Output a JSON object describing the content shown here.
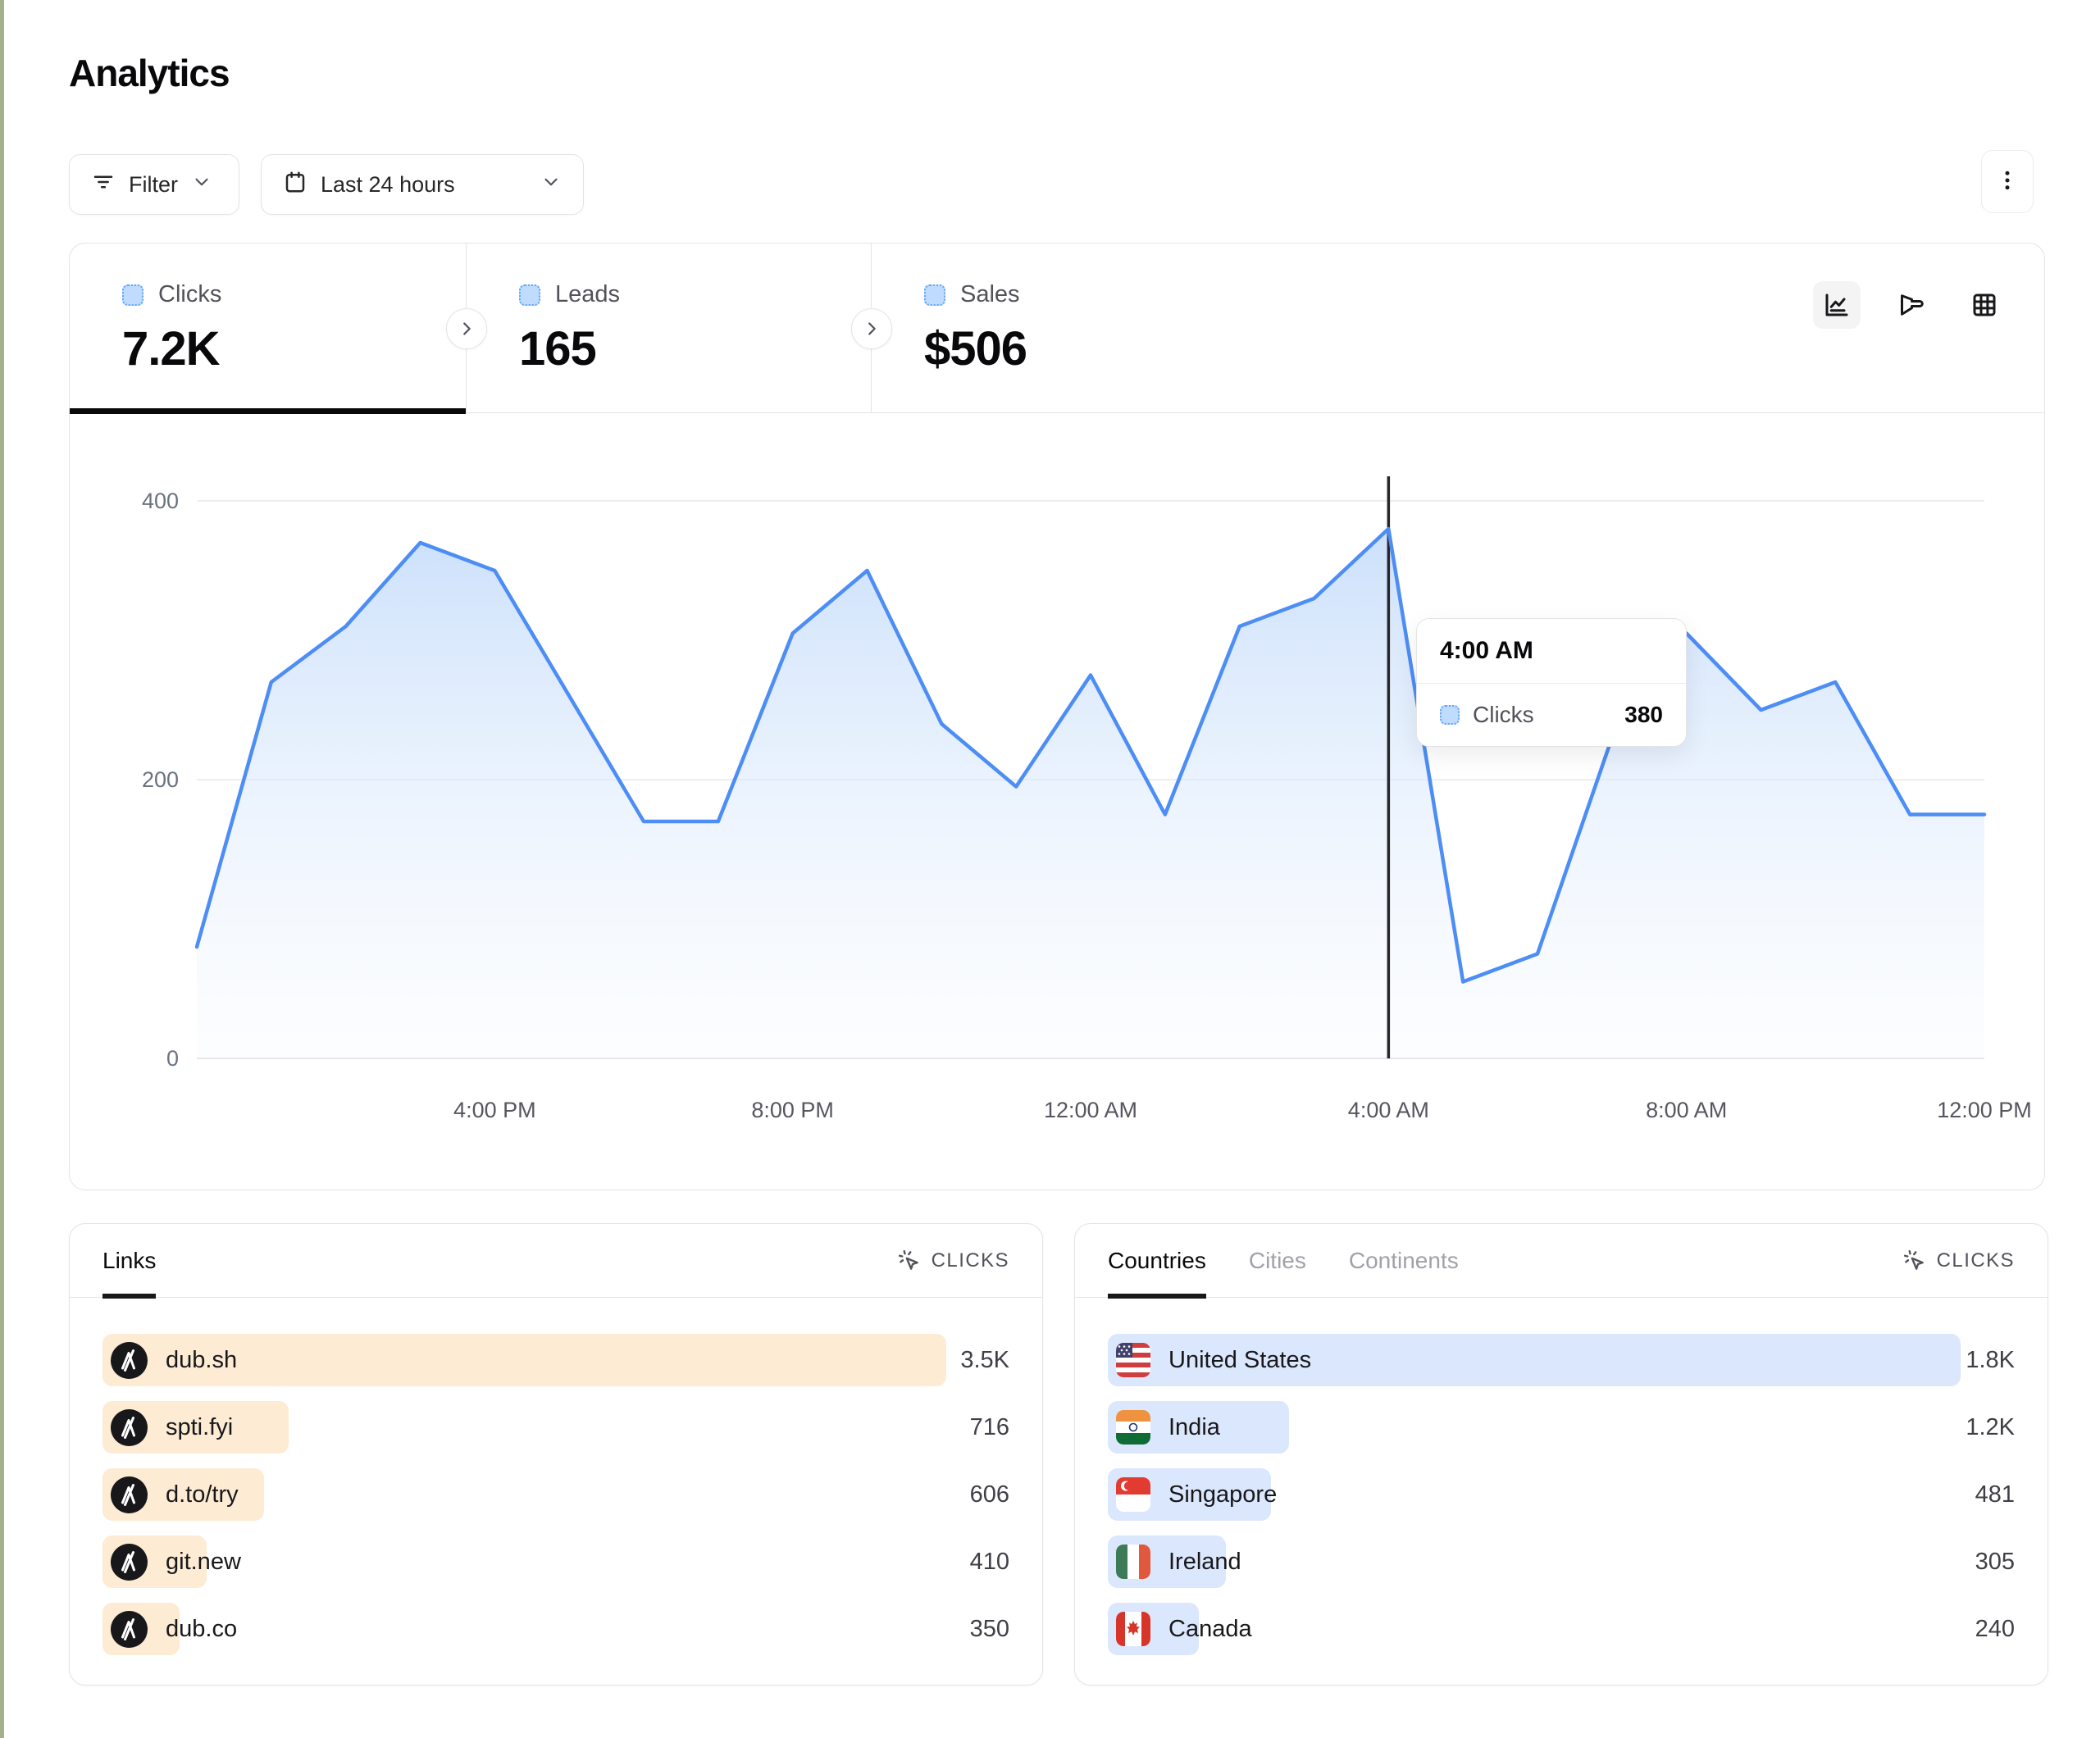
{
  "page": {
    "title": "Analytics"
  },
  "toolbar": {
    "filter_label": "Filter",
    "date_range_label": "Last 24 hours"
  },
  "stats": {
    "tabs": [
      {
        "label": "Clicks",
        "value": "7.2K",
        "active": true
      },
      {
        "label": "Leads",
        "value": "165",
        "active": false
      },
      {
        "label": "Sales",
        "value": "$506",
        "active": false
      }
    ],
    "view_icons": [
      "line-chart",
      "funnel-chart",
      "table-grid"
    ],
    "selected_view": "line-chart"
  },
  "chart_data": {
    "type": "area",
    "x": [
      "12:00 PM",
      "1:00 PM",
      "2:00 PM",
      "3:00 PM",
      "4:00 PM",
      "5:00 PM",
      "6:00 PM",
      "7:00 PM",
      "8:00 PM",
      "9:00 PM",
      "10:00 PM",
      "11:00 PM",
      "12:00 AM",
      "1:00 AM",
      "2:00 AM",
      "3:00 AM",
      "4:00 AM",
      "5:00 AM",
      "6:00 AM",
      "7:00 AM",
      "8:00 AM",
      "9:00 AM",
      "10:00 AM",
      "11:00 AM",
      "12:00 PM"
    ],
    "series": [
      {
        "name": "Clicks",
        "values": [
          80,
          270,
          310,
          370,
          350,
          260,
          170,
          170,
          305,
          350,
          240,
          195,
          275,
          175,
          310,
          330,
          380,
          55,
          75,
          230,
          305,
          250,
          270,
          175,
          175
        ]
      }
    ],
    "x_tick_indices": [
      4,
      8,
      12,
      16,
      20,
      24
    ],
    "x_tick_labels": [
      "4:00 PM",
      "8:00 PM",
      "12:00 AM",
      "4:00 AM",
      "8:00 AM",
      "12:00 PM"
    ],
    "y_ticks": [
      0,
      200,
      400
    ],
    "ylim": [
      0,
      400
    ],
    "grid": "horizontal",
    "legend_position": "none",
    "crosshair_index": 16
  },
  "tooltip": {
    "title": "4:00 AM",
    "rows": [
      {
        "label": "Clicks",
        "value": "380"
      }
    ]
  },
  "links_panel": {
    "tabs": [
      {
        "label": "Links",
        "active": true
      }
    ],
    "metric_label": "CLICKS",
    "rows": [
      {
        "label": "dub.sh",
        "value": "3.5K",
        "bar_pct": 93
      },
      {
        "label": "spti.fyi",
        "value": "716",
        "bar_pct": 20.5
      },
      {
        "label": "d.to/try",
        "value": "606",
        "bar_pct": 17.8
      },
      {
        "label": "git.new",
        "value": "410",
        "bar_pct": 11.5
      },
      {
        "label": "dub.co",
        "value": "350",
        "bar_pct": 8.5
      }
    ]
  },
  "countries_panel": {
    "tabs": [
      {
        "label": "Countries",
        "active": true
      },
      {
        "label": "Cities",
        "active": false
      },
      {
        "label": "Continents",
        "active": false
      }
    ],
    "metric_label": "CLICKS",
    "rows": [
      {
        "label": "United States",
        "flag": "us",
        "value": "1.8K",
        "bar_pct": 94
      },
      {
        "label": "India",
        "flag": "in",
        "value": "1.2K",
        "bar_pct": 20
      },
      {
        "label": "Singapore",
        "flag": "sg",
        "value": "481",
        "bar_pct": 18
      },
      {
        "label": "Ireland",
        "flag": "ie",
        "value": "305",
        "bar_pct": 13
      },
      {
        "label": "Canada",
        "flag": "ca",
        "value": "240",
        "bar_pct": 10
      }
    ]
  },
  "colors": {
    "accent_blue": "#4D8DF6",
    "area_blue_top": "#c3dbfb",
    "area_blue_bottom": "#f3f8fe",
    "legend_square_bg": "#bfdbfe",
    "legend_square_border": "#60a5fa",
    "bar_orange": "#fdebd3",
    "bar_blue": "#dbe7fc",
    "border": "#e4e4e7",
    "grid_line": "#e8e8ea",
    "axis_text": "#6b7280",
    "crosshair": "#27272a",
    "edge_strip": "#a3b18a"
  }
}
